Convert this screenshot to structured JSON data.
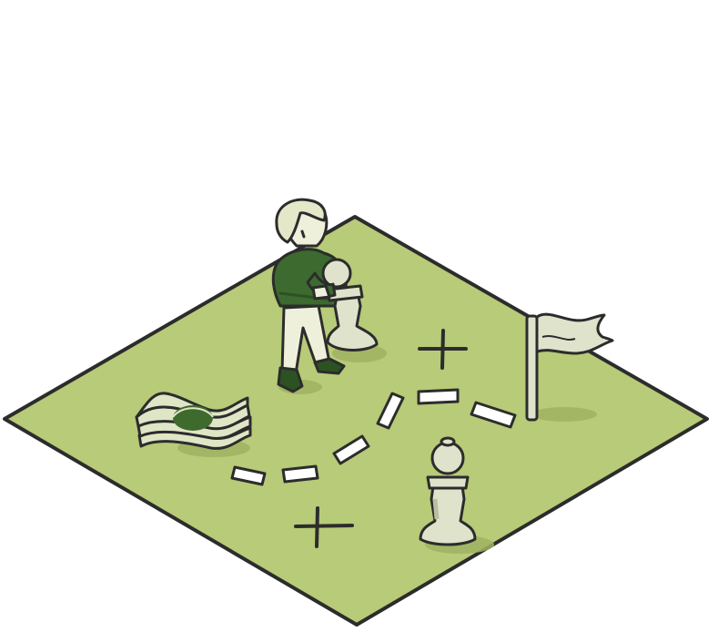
{
  "scene": {
    "description_free": true,
    "colors": {
      "board": "#b7cb78",
      "board_shadow": "#9fb363",
      "outline": "#2c2c2c",
      "piece": "#dfe3cc",
      "piece_shadow": "#b9bfa0",
      "sweater": "#3c6a2f",
      "sweater_dark": "#2d5222",
      "skin": "#eef0dc",
      "hair": "#e5e8c8",
      "path_marker": "#ffffff",
      "money": "#dfe6c6",
      "money_coin": "#3f6a2e",
      "flag": "#dfe3cc"
    },
    "icons": [
      "chessboard",
      "person-holding-pawn",
      "pawn",
      "flag",
      "money-stack",
      "cross-mark",
      "dashed-path"
    ]
  }
}
